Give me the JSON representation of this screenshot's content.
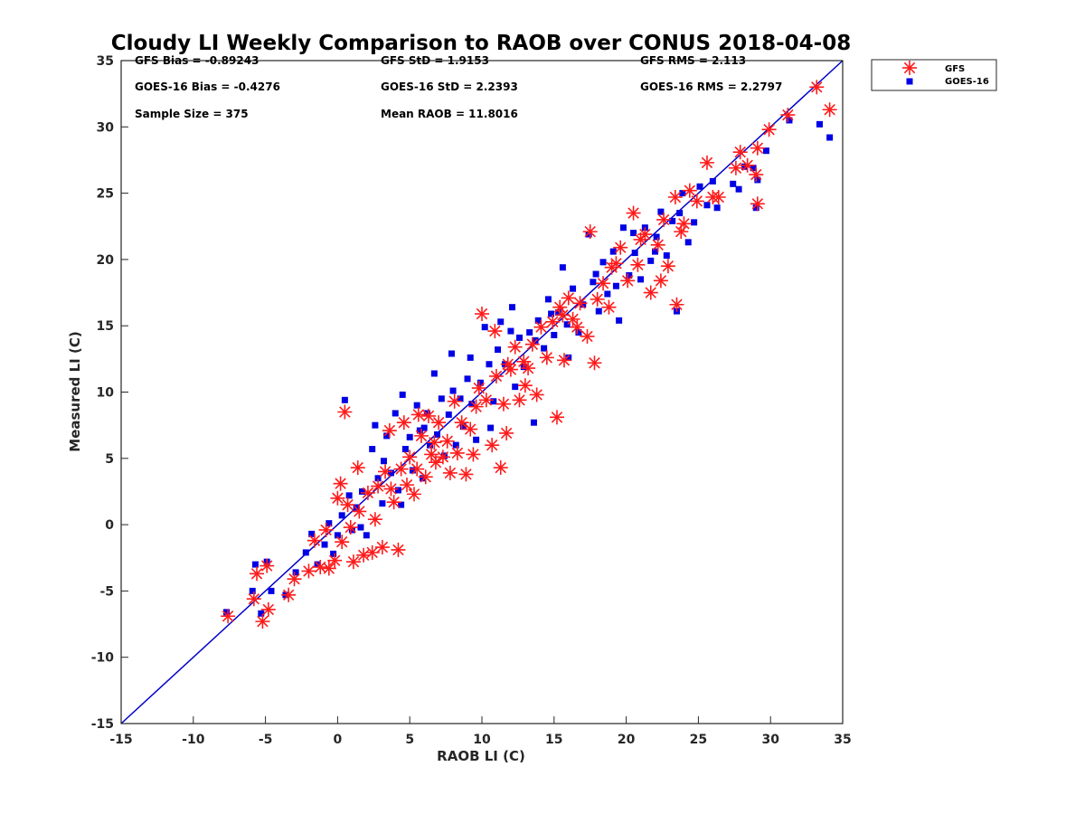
{
  "chart_data": {
    "type": "scatter",
    "title": "Cloudy LI Weekly Comparison to RAOB over CONUS 2018-04-08",
    "xlabel": "RAOB LI (C)",
    "ylabel": "Measured LI (C)",
    "xlim": [
      -15,
      35
    ],
    "ylim": [
      -15,
      35
    ],
    "xticks": [
      -15,
      -10,
      -5,
      0,
      5,
      10,
      15,
      20,
      25,
      30,
      35
    ],
    "yticks": [
      -15,
      -10,
      -5,
      0,
      5,
      10,
      15,
      20,
      25,
      30,
      35
    ],
    "grid": false,
    "legend_position": "outside-top-right",
    "stats": [
      "GFS Bias = -0.89243",
      "GFS StD = 1.9153",
      "GFS RMS = 2.113",
      "GOES-16 Bias = -0.4276",
      "GOES-16 StD = 2.2393",
      "GOES-16 RMS = 2.2797",
      "Sample Size = 375",
      "Mean RAOB = 11.8016"
    ],
    "reference_line": {
      "x": [
        -15,
        35
      ],
      "y": [
        -15,
        35
      ],
      "color": "#0000cc"
    },
    "series": [
      {
        "name": "GFS",
        "marker": "asterisk",
        "color": "#ff1a1a",
        "points": [
          [
            -7.6,
            -6.9
          ],
          [
            -5.6,
            -3.7
          ],
          [
            -5.8,
            -5.6
          ],
          [
            -5.2,
            -7.3
          ],
          [
            -4.8,
            -6.4
          ],
          [
            -4.9,
            -3.1
          ],
          [
            -3.4,
            -5.3
          ],
          [
            -3.0,
            -4.1
          ],
          [
            -2.0,
            -3.5
          ],
          [
            -1.2,
            -3.2
          ],
          [
            -1.6,
            -1.2
          ],
          [
            -0.6,
            -3.3
          ],
          [
            -0.8,
            -0.4
          ],
          [
            -0.2,
            -2.7
          ],
          [
            0.0,
            2.0
          ],
          [
            0.2,
            3.1
          ],
          [
            0.5,
            8.5
          ],
          [
            0.7,
            1.5
          ],
          [
            0.9,
            -0.2
          ],
          [
            1.1,
            -2.8
          ],
          [
            1.5,
            1.0
          ],
          [
            1.8,
            -2.3
          ],
          [
            2.1,
            2.4
          ],
          [
            2.4,
            -2.1
          ],
          [
            2.8,
            2.9
          ],
          [
            3.1,
            -1.7
          ],
          [
            3.3,
            4.0
          ],
          [
            3.6,
            7.1
          ],
          [
            3.9,
            1.7
          ],
          [
            4.2,
            -1.9
          ],
          [
            4.4,
            4.2
          ],
          [
            4.6,
            7.7
          ],
          [
            4.8,
            3.0
          ],
          [
            5.0,
            5.1
          ],
          [
            5.3,
            2.3
          ],
          [
            5.5,
            4.2
          ],
          [
            5.8,
            6.7
          ],
          [
            6.1,
            3.6
          ],
          [
            6.3,
            8.2
          ],
          [
            6.5,
            5.3
          ],
          [
            6.8,
            4.7
          ],
          [
            7.0,
            7.7
          ],
          [
            7.3,
            5.1
          ],
          [
            7.6,
            6.3
          ],
          [
            7.8,
            3.9
          ],
          [
            8.1,
            9.3
          ],
          [
            8.3,
            5.4
          ],
          [
            8.6,
            7.7
          ],
          [
            8.9,
            3.8
          ],
          [
            9.2,
            7.2
          ],
          [
            9.4,
            5.3
          ],
          [
            9.8,
            10.3
          ],
          [
            10.0,
            15.9
          ],
          [
            10.3,
            9.4
          ],
          [
            10.7,
            6.0
          ],
          [
            11.0,
            11.2
          ],
          [
            11.3,
            4.3
          ],
          [
            11.5,
            9.1
          ],
          [
            11.8,
            12.1
          ],
          [
            12.0,
            11.7
          ],
          [
            12.3,
            13.4
          ],
          [
            12.6,
            9.4
          ],
          [
            12.9,
            12.3
          ],
          [
            13.2,
            11.8
          ],
          [
            13.5,
            13.6
          ],
          [
            13.8,
            9.8
          ],
          [
            14.1,
            14.9
          ],
          [
            14.5,
            12.6
          ],
          [
            14.9,
            15.3
          ],
          [
            15.2,
            8.1
          ],
          [
            15.4,
            16.4
          ],
          [
            15.7,
            12.4
          ],
          [
            16.0,
            17.1
          ],
          [
            16.3,
            15.5
          ],
          [
            16.8,
            16.7
          ],
          [
            17.3,
            14.2
          ],
          [
            17.5,
            22.1
          ],
          [
            17.8,
            12.2
          ],
          [
            18.0,
            17.0
          ],
          [
            18.4,
            18.2
          ],
          [
            18.8,
            16.4
          ],
          [
            19.3,
            19.7
          ],
          [
            19.6,
            20.9
          ],
          [
            20.1,
            18.4
          ],
          [
            20.5,
            23.5
          ],
          [
            20.8,
            19.6
          ],
          [
            21.3,
            21.9
          ],
          [
            21.7,
            17.5
          ],
          [
            22.2,
            21.1
          ],
          [
            22.6,
            23.0
          ],
          [
            22.9,
            19.5
          ],
          [
            23.4,
            24.7
          ],
          [
            23.5,
            16.6
          ],
          [
            23.8,
            22.1
          ],
          [
            24.4,
            25.2
          ],
          [
            24.9,
            24.4
          ],
          [
            25.6,
            27.3
          ],
          [
            26.0,
            24.7
          ],
          [
            26.4,
            24.7
          ],
          [
            27.6,
            26.9
          ],
          [
            27.9,
            28.1
          ],
          [
            28.4,
            27.1
          ],
          [
            29.0,
            26.4
          ],
          [
            29.1,
            28.4
          ],
          [
            29.1,
            24.2
          ],
          [
            29.9,
            29.8
          ],
          [
            31.2,
            30.9
          ],
          [
            33.2,
            33.0
          ],
          [
            34.1,
            31.3
          ],
          [
            0.3,
            -1.3
          ],
          [
            1.4,
            4.3
          ],
          [
            2.6,
            0.4
          ],
          [
            3.7,
            2.7
          ],
          [
            5.6,
            8.3
          ],
          [
            6.7,
            6.2
          ],
          [
            9.6,
            8.9
          ],
          [
            10.9,
            14.6
          ],
          [
            11.7,
            6.9
          ],
          [
            13.0,
            10.5
          ],
          [
            15.6,
            15.8
          ],
          [
            16.6,
            14.9
          ],
          [
            19.0,
            19.4
          ],
          [
            21.0,
            21.5
          ],
          [
            22.4,
            18.4
          ],
          [
            24.0,
            22.7
          ]
        ]
      },
      {
        "name": "GOES-16",
        "marker": "square",
        "color": "#0000e6",
        "points": [
          [
            -7.7,
            -6.6
          ],
          [
            -5.7,
            -3.0
          ],
          [
            -5.9,
            -5.0
          ],
          [
            -5.3,
            -6.7
          ],
          [
            -4.6,
            -5.0
          ],
          [
            -4.9,
            -2.8
          ],
          [
            -3.6,
            -5.3
          ],
          [
            -2.9,
            -3.6
          ],
          [
            -2.2,
            -2.1
          ],
          [
            -1.8,
            -0.7
          ],
          [
            -1.4,
            -3.0
          ],
          [
            -0.9,
            -1.5
          ],
          [
            -0.6,
            0.1
          ],
          [
            -0.3,
            -2.2
          ],
          [
            0.0,
            -0.8
          ],
          [
            0.3,
            0.7
          ],
          [
            0.5,
            9.4
          ],
          [
            0.8,
            2.2
          ],
          [
            1.0,
            -0.4
          ],
          [
            1.3,
            1.3
          ],
          [
            1.7,
            2.5
          ],
          [
            2.0,
            -0.8
          ],
          [
            2.4,
            5.7
          ],
          [
            2.6,
            7.5
          ],
          [
            2.8,
            3.5
          ],
          [
            3.1,
            1.6
          ],
          [
            3.4,
            6.7
          ],
          [
            3.7,
            3.9
          ],
          [
            4.0,
            8.4
          ],
          [
            4.2,
            2.6
          ],
          [
            4.5,
            9.8
          ],
          [
            4.7,
            5.7
          ],
          [
            5.0,
            6.6
          ],
          [
            5.2,
            4.1
          ],
          [
            5.5,
            9.0
          ],
          [
            5.7,
            7.1
          ],
          [
            5.9,
            3.5
          ],
          [
            6.2,
            8.4
          ],
          [
            6.4,
            6.0
          ],
          [
            6.7,
            11.4
          ],
          [
            6.9,
            6.8
          ],
          [
            7.2,
            9.5
          ],
          [
            7.4,
            5.2
          ],
          [
            7.7,
            8.3
          ],
          [
            8.0,
            10.1
          ],
          [
            8.2,
            6.0
          ],
          [
            8.5,
            9.5
          ],
          [
            8.7,
            7.4
          ],
          [
            9.0,
            11.0
          ],
          [
            9.3,
            9.1
          ],
          [
            9.6,
            6.4
          ],
          [
            9.9,
            10.7
          ],
          [
            10.2,
            14.9
          ],
          [
            10.5,
            12.1
          ],
          [
            10.8,
            9.3
          ],
          [
            11.1,
            13.2
          ],
          [
            11.3,
            15.3
          ],
          [
            11.6,
            12.1
          ],
          [
            12.0,
            14.6
          ],
          [
            12.3,
            10.4
          ],
          [
            12.6,
            14.1
          ],
          [
            12.9,
            11.9
          ],
          [
            13.3,
            14.5
          ],
          [
            13.6,
            7.7
          ],
          [
            13.9,
            15.4
          ],
          [
            14.3,
            13.3
          ],
          [
            14.6,
            17.0
          ],
          [
            15.0,
            14.3
          ],
          [
            15.3,
            16.0
          ],
          [
            15.6,
            19.4
          ],
          [
            15.9,
            15.1
          ],
          [
            16.3,
            17.8
          ],
          [
            16.7,
            14.5
          ],
          [
            17.0,
            16.6
          ],
          [
            17.4,
            21.9
          ],
          [
            17.7,
            18.3
          ],
          [
            18.1,
            16.1
          ],
          [
            18.4,
            19.8
          ],
          [
            18.7,
            17.4
          ],
          [
            19.1,
            20.6
          ],
          [
            19.5,
            15.4
          ],
          [
            19.8,
            22.4
          ],
          [
            20.2,
            18.8
          ],
          [
            20.6,
            20.5
          ],
          [
            21.0,
            18.5
          ],
          [
            21.3,
            22.4
          ],
          [
            21.7,
            19.9
          ],
          [
            22.1,
            21.7
          ],
          [
            22.4,
            23.6
          ],
          [
            22.8,
            20.3
          ],
          [
            23.2,
            22.9
          ],
          [
            23.5,
            16.1
          ],
          [
            23.9,
            25.0
          ],
          [
            24.3,
            21.3
          ],
          [
            24.7,
            22.8
          ],
          [
            25.1,
            25.5
          ],
          [
            25.6,
            24.1
          ],
          [
            26.0,
            25.9
          ],
          [
            26.3,
            23.9
          ],
          [
            27.4,
            25.7
          ],
          [
            27.8,
            25.3
          ],
          [
            28.2,
            27.0
          ],
          [
            28.8,
            26.9
          ],
          [
            29.0,
            23.9
          ],
          [
            29.1,
            26.0
          ],
          [
            29.7,
            28.2
          ],
          [
            31.3,
            30.5
          ],
          [
            33.4,
            30.2
          ],
          [
            34.1,
            29.2
          ],
          [
            1.6,
            -0.2
          ],
          [
            3.2,
            4.8
          ],
          [
            4.4,
            1.5
          ],
          [
            6.0,
            7.3
          ],
          [
            7.9,
            12.9
          ],
          [
            9.2,
            12.6
          ],
          [
            10.6,
            7.3
          ],
          [
            12.1,
            16.4
          ],
          [
            13.7,
            13.9
          ],
          [
            14.8,
            15.9
          ],
          [
            16.0,
            12.6
          ],
          [
            17.9,
            18.9
          ],
          [
            19.3,
            18.0
          ],
          [
            20.5,
            22.0
          ],
          [
            22.0,
            20.6
          ],
          [
            23.7,
            23.5
          ]
        ]
      }
    ]
  }
}
